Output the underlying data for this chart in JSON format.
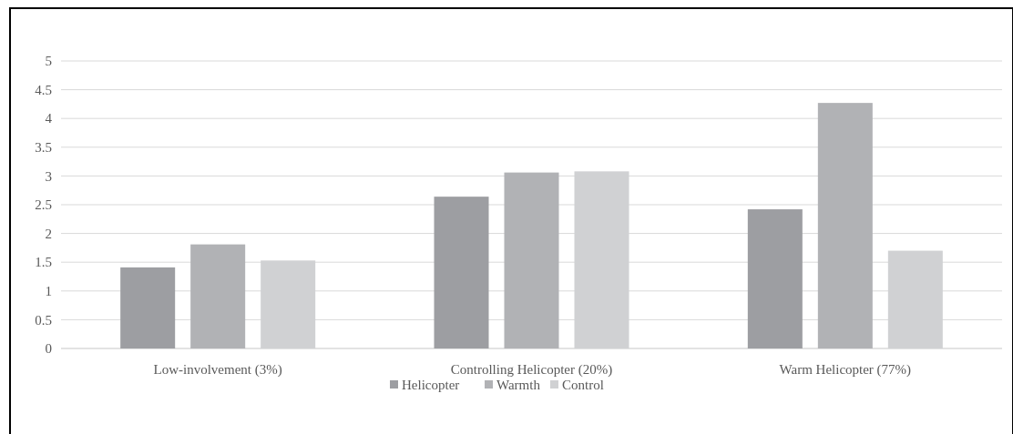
{
  "chart_data": {
    "type": "bar",
    "categories": [
      "Low-involvement (3%)",
      "Controlling Helicopter (20%)",
      "Warm Helicopter (77%)"
    ],
    "series": [
      {
        "name": "Helicopter",
        "color": "#9d9ea2",
        "values": [
          1.41,
          2.64,
          2.42
        ]
      },
      {
        "name": "Warmth",
        "color": "#b1b2b5",
        "values": [
          1.81,
          3.06,
          4.27
        ]
      },
      {
        "name": "Control",
        "color": "#d0d1d3",
        "values": [
          1.53,
          3.08,
          1.7
        ]
      }
    ],
    "ylim": [
      0,
      5
    ],
    "yticks": [
      0,
      0.5,
      1,
      1.5,
      2,
      2.5,
      3,
      3.5,
      4,
      4.5,
      5
    ],
    "grid": "y",
    "legend": "bottom"
  }
}
